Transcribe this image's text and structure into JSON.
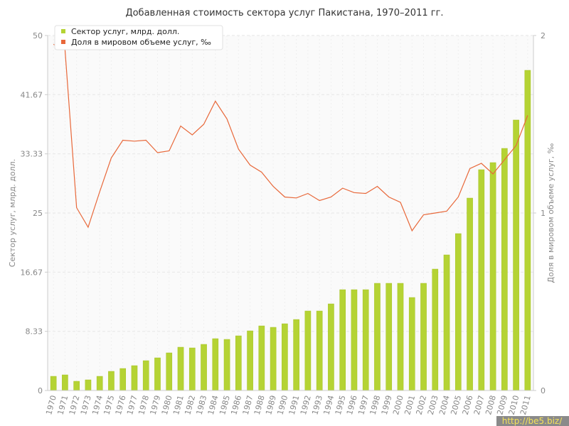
{
  "chart_data": {
    "type": "bar",
    "title": "Добавленная стоимость сектора услуг Пакистана, 1970–2011 гг.",
    "ylabel": "Сектор услуг, млрд. долл.",
    "ylabel_right": "Доля в мировом объеме услуг, ‰",
    "ylim": [
      0,
      50
    ],
    "ylim_right": [
      0,
      2
    ],
    "y_ticks": [
      "0",
      "8.33",
      "16.67",
      "25",
      "33.33",
      "41.67",
      "50"
    ],
    "y_ticks_right": [
      "0",
      "1",
      "2"
    ],
    "grid": true,
    "legend_position": "top-left",
    "categories": [
      "1970",
      "1971",
      "1972",
      "1973",
      "1974",
      "1975",
      "1976",
      "1977",
      "1978",
      "1979",
      "1980",
      "1981",
      "1982",
      "1983",
      "1984",
      "1985",
      "1986",
      "1987",
      "1988",
      "1989",
      "1990",
      "1991",
      "1992",
      "1993",
      "1994",
      "1995",
      "1996",
      "1997",
      "1998",
      "1999",
      "2000",
      "2001",
      "2002",
      "2003",
      "2004",
      "2005",
      "2006",
      "2007",
      "2008",
      "2009",
      "2010",
      "2011"
    ],
    "series": [
      {
        "name": "Сектор услуг, млрд. долл.",
        "type": "bar",
        "axis": "left",
        "color": "#b5d334",
        "values": [
          2.0,
          2.2,
          1.3,
          1.5,
          2.0,
          2.7,
          3.1,
          3.5,
          4.2,
          4.6,
          5.3,
          6.1,
          6.0,
          6.5,
          7.3,
          7.2,
          7.7,
          8.4,
          9.1,
          8.9,
          9.4,
          10.0,
          11.2,
          11.2,
          12.2,
          14.2,
          14.2,
          14.2,
          15.1,
          15.1,
          15.1,
          13.1,
          15.1,
          17.1,
          19.1,
          22.1,
          27.1,
          31.1,
          32.1,
          34.1,
          38.1,
          45.1
        ]
      },
      {
        "name": "Доля в мировом объеме услуг, ‰",
        "type": "line",
        "axis": "right",
        "color": "#e8683a",
        "values": [
          1.95,
          1.92,
          1.03,
          0.92,
          1.12,
          1.31,
          1.41,
          1.405,
          1.41,
          1.34,
          1.35,
          1.49,
          1.44,
          1.5,
          1.63,
          1.53,
          1.36,
          1.27,
          1.23,
          1.15,
          1.09,
          1.085,
          1.11,
          1.07,
          1.09,
          1.14,
          1.115,
          1.11,
          1.15,
          1.09,
          1.06,
          0.9,
          0.99,
          1.0,
          1.01,
          1.09,
          1.25,
          1.28,
          1.22,
          1.3,
          1.38,
          1.55
        ]
      }
    ]
  },
  "watermark": "http://be5.biz/"
}
